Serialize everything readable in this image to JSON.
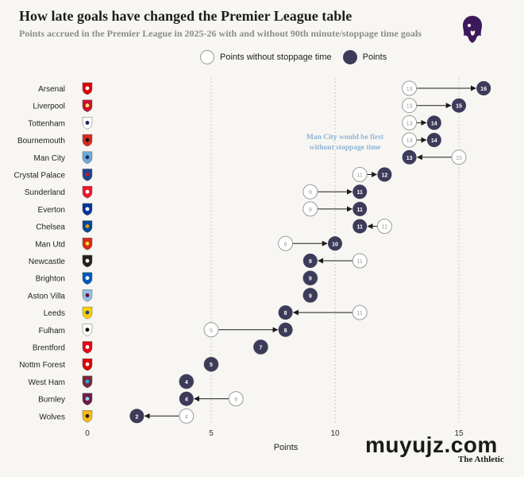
{
  "title": "How late goals have changed the Premier League table",
  "subtitle": "Points accrued in the Premier League in 2025-26 with and without 90th minute/stoppage time goals",
  "logo_icon": "premier-league-lion-icon",
  "legend": {
    "without_label": "Points without stoppage time",
    "with_label": "Points"
  },
  "brand": {
    "watermark": "muyujz.com",
    "source": "The Athletic"
  },
  "colors": {
    "filled": "#3d3b5a",
    "open_stroke": "#9a9a9a",
    "annotation": "#8fb3d6",
    "background": "#f7f6f2"
  },
  "chart_data": {
    "type": "dot",
    "title": "How late goals have changed the Premier League table",
    "xlabel": "Points",
    "xlim": [
      0,
      17
    ],
    "xticks": [
      0,
      5,
      10,
      15
    ],
    "gridlines": [
      5,
      10,
      15
    ],
    "series": [
      {
        "name": "Points without stoppage time",
        "style": "open"
      },
      {
        "name": "Points",
        "style": "filled"
      }
    ],
    "teams": [
      {
        "team": "Arsenal",
        "without": 13,
        "points": 16,
        "crest": "arsenal-crest-icon"
      },
      {
        "team": "Liverpool",
        "without": 13,
        "points": 15,
        "crest": "liverpool-crest-icon"
      },
      {
        "team": "Tottenham",
        "without": 13,
        "points": 14,
        "crest": "tottenham-crest-icon"
      },
      {
        "team": "Bournemouth",
        "without": 13,
        "points": 14,
        "crest": "bournemouth-crest-icon"
      },
      {
        "team": "Man City",
        "without": 15,
        "points": 13,
        "crest": "man-city-crest-icon"
      },
      {
        "team": "Crystal Palace",
        "without": 11,
        "points": 12,
        "crest": "crystal-palace-crest-icon"
      },
      {
        "team": "Sunderland",
        "without": 9,
        "points": 11,
        "crest": "sunderland-crest-icon"
      },
      {
        "team": "Everton",
        "without": 9,
        "points": 11,
        "crest": "everton-crest-icon"
      },
      {
        "team": "Chelsea",
        "without": 12,
        "points": 11,
        "crest": "chelsea-crest-icon"
      },
      {
        "team": "Man Utd",
        "without": 8,
        "points": 10,
        "crest": "man-utd-crest-icon"
      },
      {
        "team": "Newcastle",
        "without": 11,
        "points": 9,
        "crest": "newcastle-crest-icon"
      },
      {
        "team": "Brighton",
        "without": 9,
        "points": 9,
        "crest": "brighton-crest-icon"
      },
      {
        "team": "Aston Villa",
        "without": 9,
        "points": 9,
        "crest": "aston-villa-crest-icon"
      },
      {
        "team": "Leeds",
        "without": 11,
        "points": 8,
        "crest": "leeds-crest-icon"
      },
      {
        "team": "Fulham",
        "without": 5,
        "points": 8,
        "crest": "fulham-crest-icon"
      },
      {
        "team": "Brentford",
        "without": 7,
        "points": 7,
        "crest": "brentford-crest-icon"
      },
      {
        "team": "Nottm Forest",
        "without": 5,
        "points": 5,
        "crest": "nottm-forest-crest-icon"
      },
      {
        "team": "West Ham",
        "without": 4,
        "points": 4,
        "crest": "west-ham-crest-icon"
      },
      {
        "team": "Burnley",
        "without": 6,
        "points": 4,
        "crest": "burnley-crest-icon"
      },
      {
        "team": "Wolves",
        "without": 4,
        "points": 2,
        "crest": "wolves-crest-icon"
      }
    ],
    "annotations": [
      {
        "team": "Man City",
        "lines": [
          "Man City would be first",
          "without stoppage time"
        ]
      }
    ]
  }
}
